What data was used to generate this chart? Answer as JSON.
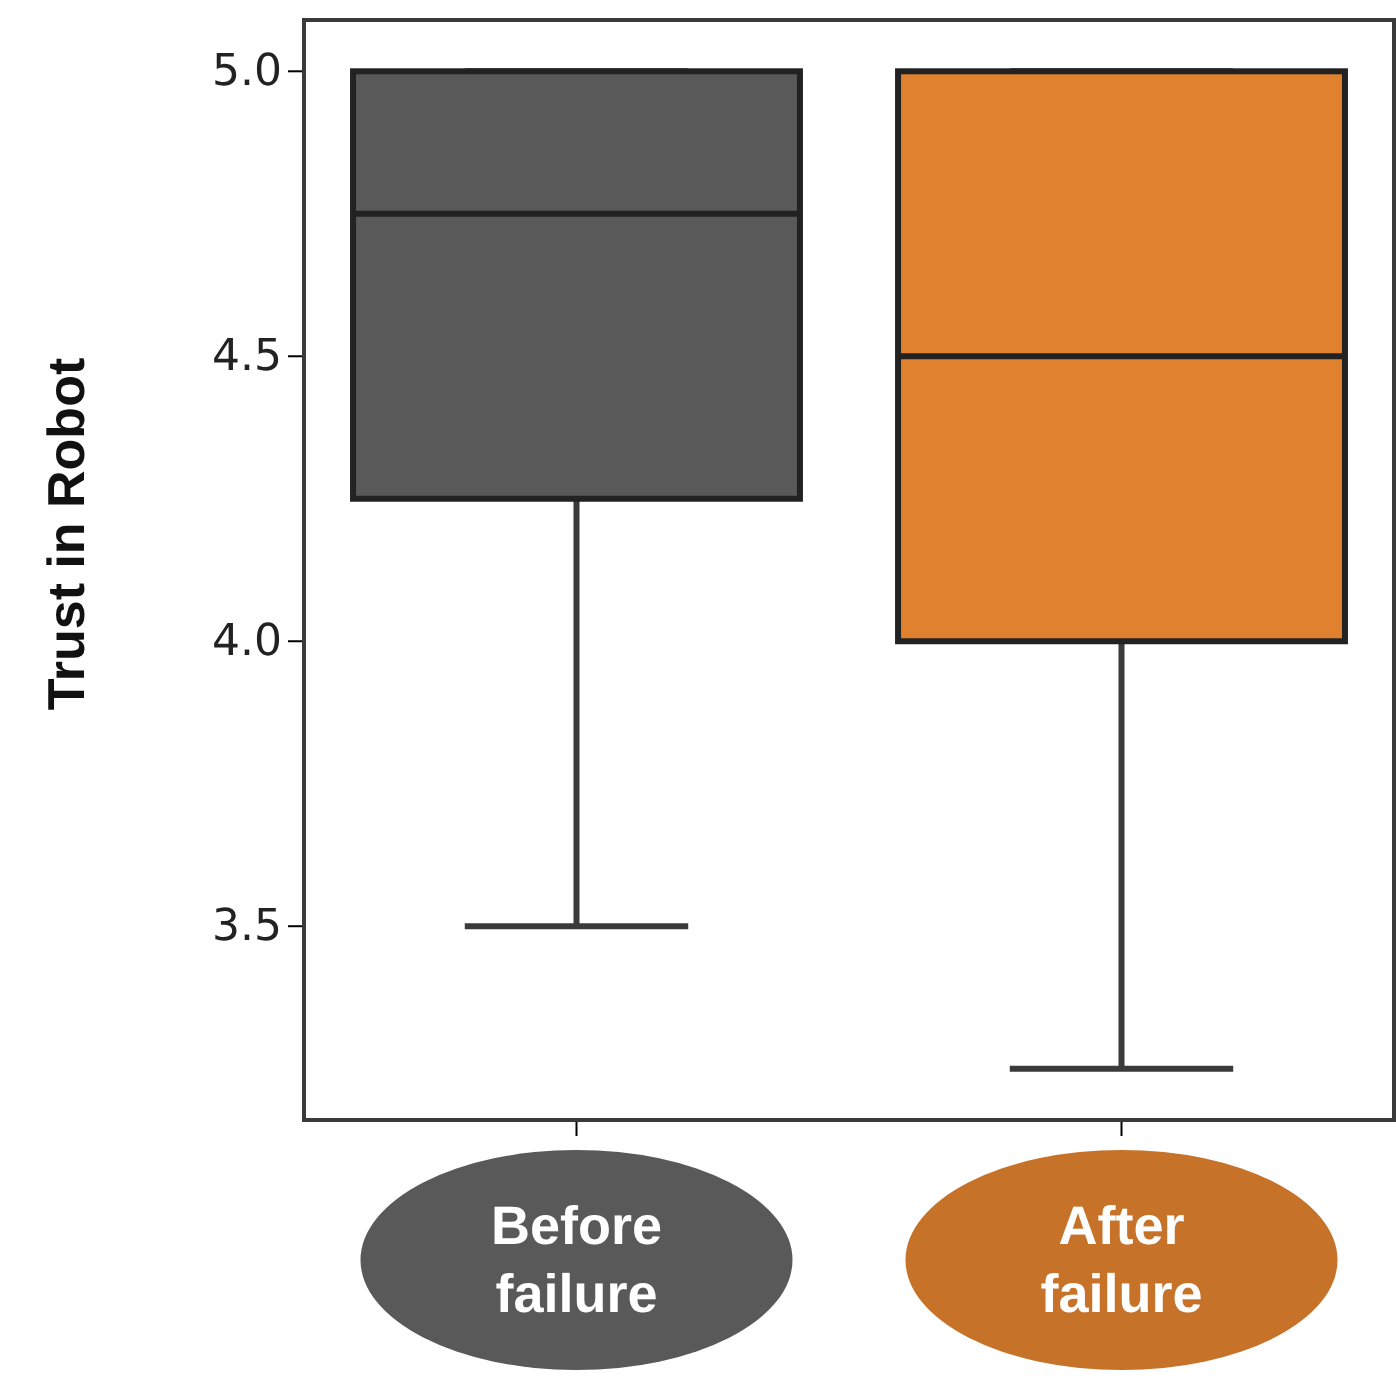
{
  "chart_data": {
    "type": "box",
    "ylabel": "Trust in Robot",
    "categories": [
      "Before failure",
      "After failure"
    ],
    "colors": [
      "#595959",
      "#e0812f"
    ],
    "boxes": [
      {
        "low": 3.5,
        "q1": 4.25,
        "median": 4.75,
        "q3": 5.0,
        "high": 5.0
      },
      {
        "low": 3.25,
        "q1": 4.0,
        "median": 4.5,
        "q3": 5.0,
        "high": 5.0
      }
    ],
    "ylim": [
      3.16,
      5.09
    ],
    "yticks": [
      {
        "value": 3.5,
        "label": "3.5"
      },
      {
        "value": 4.0,
        "label": "4.0"
      },
      {
        "value": 4.5,
        "label": "4.5"
      },
      {
        "value": 5.0,
        "label": "5.0"
      }
    ],
    "grid": false
  }
}
